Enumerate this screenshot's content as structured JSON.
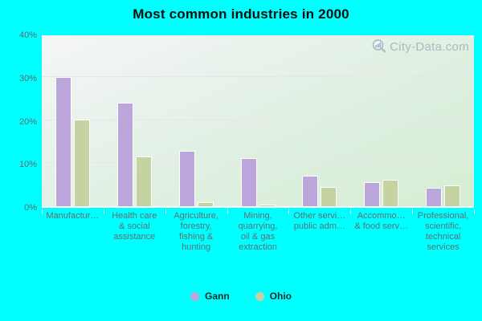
{
  "title": "Most common industries in 2000",
  "watermark": {
    "text": "City-Data.com"
  },
  "colors": {
    "background": "#00ffff",
    "gann_bar": "#bca7dc",
    "ohio_bar": "#c5d3a2",
    "gridline": "#ece2ec",
    "watermark_text": "#a7b3bb",
    "title_text": "#0d0d0d",
    "axis_text": "#5f6e74"
  },
  "chart_data": {
    "type": "bar",
    "title": "Most common industries in 2000",
    "categories": [
      "Manufacturing",
      "Health care & social assistance",
      "Agriculture, forestry, fishing & hunting",
      "Mining, quarrying, oil & gas extraction",
      "Other services, public administration",
      "Accommodation & food services",
      "Professional, scientific, technical services"
    ],
    "category_tick_labels": [
      [
        "Manufactur…"
      ],
      [
        "Health care",
        "& social",
        "assistance"
      ],
      [
        "Agriculture,",
        "forestry,",
        "fishing &",
        "hunting"
      ],
      [
        "Mining,",
        "quarrying,",
        "oil & gas",
        "extraction"
      ],
      [
        "Other servi…",
        "public adm…"
      ],
      [
        "Accommo…",
        "& food serv…"
      ],
      [
        "Professional,",
        "scientific,",
        "technical",
        "services"
      ]
    ],
    "series": [
      {
        "name": "Gann",
        "color": "#bca7dc",
        "values": [
          30.0,
          24.0,
          12.8,
          11.2,
          7.0,
          5.6,
          4.2
        ]
      },
      {
        "name": "Ohio",
        "color": "#c5d3a2",
        "values": [
          20.1,
          11.6,
          1.0,
          0.3,
          4.4,
          6.1,
          4.9
        ]
      }
    ],
    "xlabel": "",
    "ylabel": "",
    "ylim": [
      0,
      40
    ],
    "ytick_labels": [
      "40%",
      "30%",
      "20%",
      "10%",
      "0%"
    ],
    "ytick_values": [
      40,
      30,
      20,
      10,
      0
    ],
    "grid": true,
    "legend_position": "bottom"
  }
}
